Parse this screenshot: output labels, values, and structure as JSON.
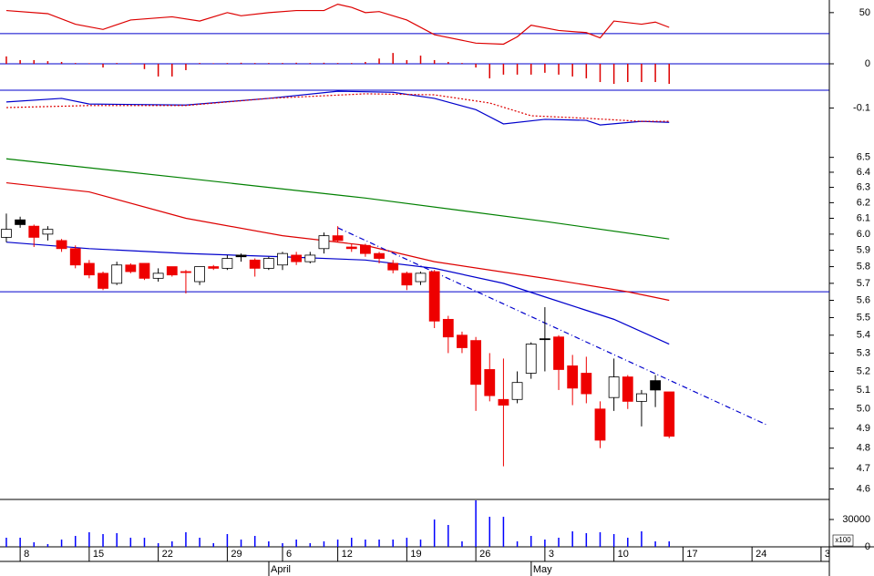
{
  "chart_data": [
    {
      "type": "line",
      "ylim": [
        10,
        62
      ],
      "yticks": [
        50
      ],
      "hline": 30,
      "hline_color": "#0000cc",
      "series": [
        {
          "color": "#dd0000",
          "x": [
            0,
            3,
            5,
            7,
            9,
            12,
            14,
            16,
            17,
            19,
            21,
            23,
            24,
            25,
            26,
            27,
            29,
            31,
            34,
            36,
            37,
            38,
            40,
            42,
            43,
            44,
            46,
            47,
            48
          ],
          "values": [
            52,
            49,
            39,
            34,
            43,
            46,
            42,
            50,
            47,
            50,
            52,
            52,
            58,
            55,
            50,
            51,
            43,
            29,
            21,
            20,
            27,
            38,
            33,
            31,
            26,
            42,
            39,
            41,
            36
          ]
        }
      ]
    },
    {
      "type": "bar",
      "ylim": [
        -1,
        1
      ],
      "yticks": [
        0
      ],
      "grid": true,
      "grid_color": "#0000cc",
      "color": "#dd0000",
      "values": [
        0.28,
        0.14,
        0.14,
        0.1,
        0.07,
        0.03,
        0.02,
        -0.14,
        0.03,
        0.02,
        -0.2,
        -0.48,
        -0.48,
        -0.24,
        0.03,
        0.02,
        0.03,
        0.04,
        0.03,
        0.03,
        0.03,
        0.04,
        0.03,
        0.04,
        0.03,
        0.03,
        0.07,
        0.2,
        0.41,
        0.14,
        0.31,
        0.14,
        0.07,
        0.03,
        -0.14,
        -0.55,
        -0.41,
        -0.41,
        -0.41,
        -0.34,
        -0.41,
        -0.48,
        -0.55,
        -0.69,
        -0.76,
        -0.69,
        -0.69,
        -0.69,
        -0.76
      ]
    },
    {
      "type": "line",
      "ylim": [
        -0.165,
        -0.065
      ],
      "yticks": [
        -0.1
      ],
      "series": [
        {
          "color": "#0000cc",
          "x": [
            0,
            4,
            6,
            13,
            19,
            24,
            28,
            31,
            34,
            36,
            39,
            42,
            43,
            46,
            48
          ],
          "values": [
            -0.088,
            -0.081,
            -0.092,
            -0.094,
            -0.081,
            -0.067,
            -0.069,
            -0.081,
            -0.103,
            -0.131,
            -0.122,
            -0.124,
            -0.133,
            -0.126,
            -0.128
          ]
        },
        {
          "color": "#dd0000",
          "dash": "dotted",
          "x": [
            0,
            6,
            13,
            19,
            26,
            31,
            35,
            38,
            42,
            46,
            48
          ],
          "values": [
            -0.099,
            -0.095,
            -0.095,
            -0.081,
            -0.072,
            -0.074,
            -0.09,
            -0.115,
            -0.12,
            -0.126,
            -0.126
          ]
        }
      ]
    },
    {
      "type": "candlestick",
      "log": true,
      "ylim": [
        4.55,
        6.61
      ],
      "yticks": [
        6.5,
        6.4,
        6.3,
        6.2,
        6.1,
        {
          "value": 6,
          "label": "6.0"
        },
        5.9,
        5.8,
        5.7,
        5.6,
        5.5,
        5.4,
        5.3,
        5.2,
        5.1,
        {
          "value": 5,
          "label": "5.0"
        },
        4.9,
        4.8,
        4.7,
        4.6
      ],
      "xlim": [
        -0.46,
        59.6
      ],
      "xticks": [
        {
          "value": 1,
          "label": "8"
        },
        {
          "value": 6,
          "label": "15"
        },
        {
          "value": 11,
          "label": "22"
        },
        {
          "value": 16,
          "label": "29"
        },
        {
          "value": 20,
          "label": "6"
        },
        {
          "value": 24,
          "label": "12"
        },
        {
          "value": 29,
          "label": "19"
        },
        {
          "value": 34,
          "label": "26"
        },
        {
          "value": 39,
          "label": "3"
        },
        {
          "value": 44,
          "label": "10"
        },
        {
          "value": 49,
          "label": "17"
        },
        {
          "value": 54,
          "label": "24"
        },
        {
          "value": 59,
          "label": "3"
        }
      ],
      "months": [
        {
          "value": 20,
          "label": "April"
        },
        {
          "value": 39,
          "label": "May"
        }
      ],
      "hline": 5.65,
      "hline_color": "#0000cc",
      "open": [
        5.98,
        6.06,
        6.05,
        6.0,
        5.96,
        5.91,
        5.82,
        5.76,
        5.7,
        5.81,
        5.82,
        5.73,
        5.8,
        5.77,
        5.71,
        5.8,
        5.79,
        5.86,
        5.84,
        5.79,
        5.81,
        5.87,
        5.83,
        5.91,
        5.99,
        5.92,
        5.93,
        5.88,
        5.82,
        5.76,
        5.71,
        5.77,
        5.49,
        5.4,
        5.37,
        5.21,
        5.05,
        5.05,
        5.19,
        5.38,
        5.39,
        5.23,
        5.19,
        5.0,
        5.06,
        5.17,
        5.04,
        5.1,
        5.09
      ],
      "high": [
        6.13,
        6.11,
        6.06,
        6.05,
        5.97,
        5.93,
        5.84,
        5.77,
        5.83,
        5.82,
        5.82,
        5.79,
        5.8,
        5.78,
        5.8,
        5.81,
        5.87,
        5.88,
        5.85,
        5.86,
        5.89,
        5.89,
        5.89,
        6.01,
        6.05,
        5.94,
        5.94,
        5.89,
        5.84,
        5.77,
        5.77,
        5.78,
        5.51,
        5.42,
        5.39,
        5.3,
        5.27,
        5.2,
        5.36,
        5.56,
        5.4,
        5.29,
        5.28,
        5.04,
        5.27,
        5.18,
        5.1,
        5.18,
        5.09
      ],
      "low": [
        5.95,
        6.04,
        5.92,
        5.96,
        5.89,
        5.79,
        5.73,
        5.66,
        5.69,
        5.76,
        5.72,
        5.71,
        5.74,
        5.64,
        5.69,
        5.78,
        5.78,
        5.83,
        5.74,
        5.78,
        5.78,
        5.81,
        5.82,
        5.88,
        5.95,
        5.89,
        5.86,
        5.82,
        5.76,
        5.66,
        5.69,
        5.44,
        5.3,
        5.3,
        4.99,
        5.04,
        4.71,
        5.03,
        5.16,
        5.2,
        5.1,
        5.02,
        5.03,
        4.8,
        4.99,
        5.0,
        4.91,
        5.01,
        4.85
      ],
      "close": [
        6.03,
        6.09,
        5.98,
        6.03,
        5.91,
        5.81,
        5.75,
        5.67,
        5.81,
        5.77,
        5.73,
        5.76,
        5.75,
        5.77,
        5.8,
        5.79,
        5.85,
        5.87,
        5.79,
        5.85,
        5.88,
        5.83,
        5.87,
        5.99,
        5.96,
        5.91,
        5.88,
        5.85,
        5.78,
        5.69,
        5.76,
        5.48,
        5.39,
        5.33,
        5.13,
        5.07,
        5.02,
        5.14,
        5.35,
        5.38,
        5.21,
        5.11,
        5.08,
        4.84,
        5.17,
        5.04,
        5.08,
        5.15,
        4.86
      ],
      "colors": [
        "#ffffff",
        "#000000",
        "#ee0000",
        "#ffffff",
        "#ee0000",
        "#ee0000",
        "#ee0000",
        "#ee0000",
        "#ffffff",
        "#ee0000",
        "#ee0000",
        "#ffffff",
        "#ee0000",
        "#ee0000",
        "#ffffff",
        "#ee0000",
        "#ffffff",
        "#000000",
        "#ee0000",
        "#ffffff",
        "#ffffff",
        "#ee0000",
        "#ffffff",
        "#ffffff",
        "#ee0000",
        "#ee0000",
        "#ee0000",
        "#ee0000",
        "#ee0000",
        "#ee0000",
        "#ffffff",
        "#ee0000",
        "#ee0000",
        "#ee0000",
        "#ee0000",
        "#ee0000",
        "#ee0000",
        "#ffffff",
        "#ffffff",
        "#000000",
        "#ee0000",
        "#ee0000",
        "#ee0000",
        "#ee0000",
        "#ffffff",
        "#ee0000",
        "#ffffff",
        "#000000",
        "#ee0000"
      ],
      "series": [
        {
          "color": "#008000",
          "x": [
            0,
            13,
            26,
            39,
            48
          ],
          "values": [
            6.49,
            6.36,
            6.23,
            6.08,
            5.97
          ]
        },
        {
          "color": "#dd0000",
          "x": [
            0,
            6,
            13,
            20,
            26,
            31,
            39,
            45,
            48
          ],
          "values": [
            6.33,
            6.27,
            6.1,
            5.99,
            5.93,
            5.83,
            5.73,
            5.65,
            5.6
          ]
        },
        {
          "color": "#0000cc",
          "x": [
            0,
            6,
            13,
            20,
            26,
            31,
            36,
            39,
            44,
            48
          ],
          "values": [
            5.95,
            5.91,
            5.88,
            5.86,
            5.84,
            5.79,
            5.7,
            5.62,
            5.49,
            5.35
          ]
        },
        {
          "color": "#0000cc",
          "dash": "dashdot",
          "x": [
            24,
            55
          ],
          "values": [
            6.04,
            4.92
          ]
        }
      ]
    },
    {
      "type": "bar",
      "ylim": [
        0,
        52000
      ],
      "yticks": [
        30000,
        0
      ],
      "multiplier": "x100",
      "color": "#0000ff",
      "values": [
        10000,
        10000,
        5000,
        3000,
        8000,
        12000,
        16000,
        14000,
        15000,
        10000,
        10000,
        4000,
        6000,
        16000,
        10000,
        4000,
        14000,
        8000,
        12000,
        6000,
        4000,
        8000,
        4000,
        6000,
        8000,
        10000,
        8000,
        8000,
        8000,
        10000,
        8000,
        30000,
        24000,
        6000,
        51000,
        33000,
        33000,
        6000,
        12000,
        8000,
        10000,
        17000,
        15000,
        16000,
        14000,
        10000,
        17000,
        6000,
        6000
      ]
    }
  ]
}
